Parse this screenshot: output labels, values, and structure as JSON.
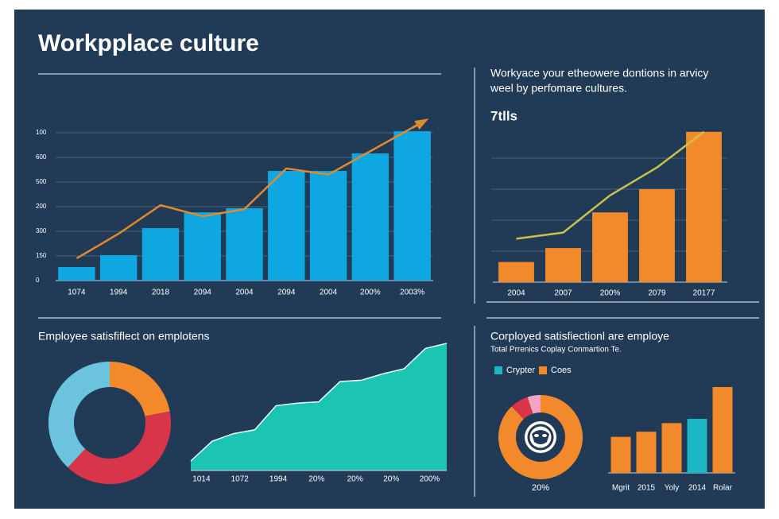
{
  "title": "Workpplace culture",
  "chart_data": [
    {
      "type": "bar",
      "categories": [
        "1074",
        "1994",
        "2018",
        "2094",
        "2004",
        "2094",
        "2004",
        "200%",
        "2003%"
      ],
      "series": [
        {
          "type": "bar",
          "color": "#0ea7e2",
          "values": [
            55,
            103,
            213,
            277,
            294,
            445,
            445,
            516,
            606
          ]
        },
        {
          "type": "line",
          "color": "#e08a2e",
          "values": [
            90,
            190,
            306,
            261,
            290,
            455,
            430,
            525,
            620
          ]
        }
      ],
      "ylim": [
        0,
        700
      ],
      "yticks": [
        0,
        {
          "value": 100,
          "label": "150"
        },
        {
          "value": 200,
          "label": "300"
        },
        {
          "value": 300,
          "label": "200"
        },
        {
          "value": 400,
          "label": "500"
        },
        {
          "value": 500,
          "label": "600"
        },
        {
          "value": 600,
          "label": "100"
        }
      ],
      "grid": true
    },
    {
      "type": "bar",
      "title": [
        "Workyace your etheowere dontions in arvicy",
        "weel by perfomare cultures."
      ],
      "annotation": "7tlls",
      "categories": [
        "2004",
        "2007",
        "200%",
        "2079",
        "20177"
      ],
      "series": [
        {
          "type": "bar",
          "color": "#f28a2c",
          "values": [
            13,
            22,
            45,
            60,
            97
          ]
        },
        {
          "type": "line",
          "color": "#c9c24e",
          "values": [
            28,
            32,
            56,
            74,
            97
          ]
        }
      ],
      "ylim": [
        0,
        100
      ],
      "gridlines": [
        20,
        40,
        60,
        80
      ],
      "grid": true
    },
    {
      "type": "pie",
      "title": "Employee satisfiflect on emplotens",
      "values": [
        22,
        40,
        38
      ],
      "colors": [
        "#f28a2c",
        "#d8344a",
        "#6cc3de"
      ]
    },
    {
      "type": "area",
      "color": "#1cc4b4",
      "x": [
        0,
        1,
        2,
        3,
        4,
        5,
        6,
        7,
        8,
        9,
        10,
        11,
        12
      ],
      "values": [
        7.5,
        23,
        29,
        32,
        51,
        53,
        54,
        70,
        71,
        76,
        80,
        96,
        100
      ],
      "xlim": [
        0,
        12
      ],
      "ylim": [
        0,
        100
      ],
      "xticks": [
        {
          "value": 0.5,
          "label": "1014"
        },
        {
          "value": 2.3,
          "label": "1072"
        },
        {
          "value": 4.1,
          "label": "1994"
        },
        {
          "value": 5.9,
          "label": "20%"
        },
        {
          "value": 7.7,
          "label": "20%"
        },
        {
          "value": 9.4,
          "label": "20%"
        },
        {
          "value": 11.2,
          "label": "200%"
        }
      ]
    },
    {
      "type": "pie",
      "title": "Corployed satisfiectionl are employe",
      "subtitle": "Total Prrenics Coplay Conmartion Te.",
      "annotation": "20%",
      "values": [
        88,
        7,
        5
      ],
      "colors": [
        "#f28a2c",
        "#d8344a",
        "#f4a3c4"
      ]
    },
    {
      "type": "bar",
      "categories": [
        "Mgrit",
        "2015",
        "Yoly",
        "2014",
        "Rolar"
      ],
      "series": [
        {
          "type": "bar",
          "name": "Crypter",
          "color": "#1bb7c4",
          "values": [
            null,
            null,
            null,
            63,
            null
          ]
        },
        {
          "type": "bar",
          "name": "Coes",
          "color": "#f28a2c",
          "values": [
            42,
            48,
            58,
            null,
            100
          ]
        }
      ],
      "ylim": [
        0,
        100
      ],
      "legend": "top-left"
    }
  ]
}
